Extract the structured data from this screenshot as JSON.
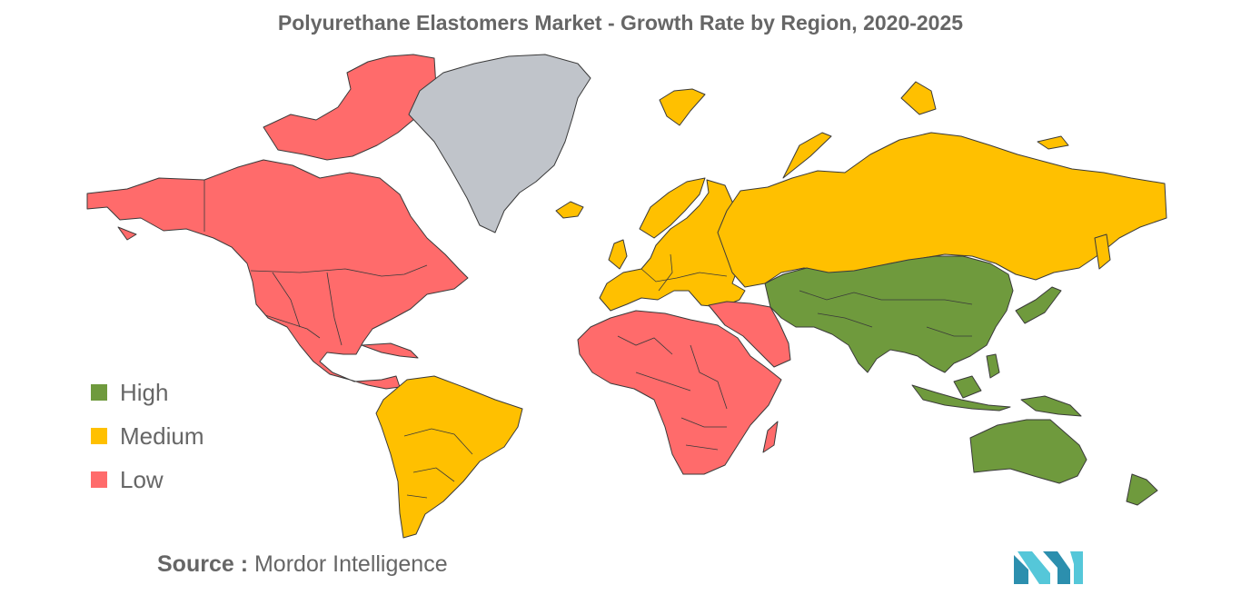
{
  "title": "Polyurethane Elastomers Market - Growth Rate by Region, 2020-2025",
  "legend": [
    {
      "label": "High",
      "color": "#6f9a3d"
    },
    {
      "label": "Medium",
      "color": "#ffc000"
    },
    {
      "label": "Low",
      "color": "#ff6b6b"
    }
  ],
  "no_data_color": "#c0c4ca",
  "regions": {
    "north_america": "Low",
    "south_america": "Medium",
    "europe": "Medium",
    "russia": "Medium",
    "middle_east_africa": "Low",
    "asia_pacific": "High",
    "greenland": "No data"
  },
  "source": {
    "prefix": "Source :",
    "name": "Mordor Intelligence"
  },
  "logo": {
    "colors": [
      "#2c8fae",
      "#55c7d9"
    ]
  }
}
